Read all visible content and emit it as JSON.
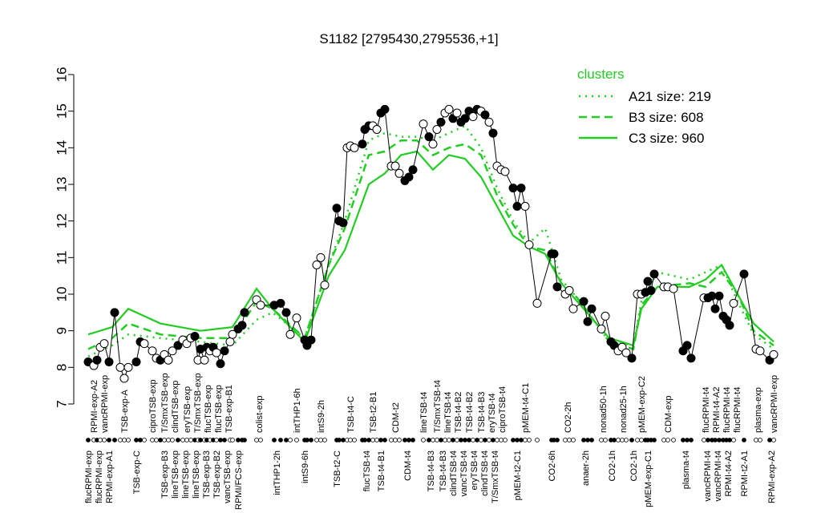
{
  "chart_data": {
    "type": "line",
    "title": "S1182 [2795430,2795536,+1]",
    "xlabel": "",
    "ylabel": "",
    "ylim": [
      7,
      16
    ],
    "yticks": [
      7,
      8,
      9,
      10,
      11,
      12,
      13,
      14,
      15,
      16
    ],
    "grid": false,
    "legend": {
      "title": "clusters",
      "placement": "top-right",
      "entries": [
        {
          "name": "A21 size: 219",
          "style": "dotted"
        },
        {
          "name": "B3 size: 608",
          "style": "dashed"
        },
        {
          "name": "C3 size: 960",
          "style": "solid"
        }
      ]
    },
    "colors": {
      "clusters": "#22cc22",
      "points": "#000000"
    },
    "points": {
      "values": [
        8.15,
        8.05,
        8.2,
        8.55,
        8.65,
        8.15,
        9.5,
        8.0,
        7.7,
        8.0,
        8.15,
        8.7,
        8.65,
        8.45,
        8.25,
        8.2,
        8.35,
        8.2,
        8.45,
        8.6,
        8.75,
        8.65,
        8.8,
        8.85,
        8.2,
        8.5,
        8.2,
        8.55,
        8.45,
        8.55,
        8.4,
        8.1,
        8.45,
        8.7,
        8.9,
        9.05,
        9.15,
        9.5,
        9.85,
        9.7,
        9.7,
        9.75,
        9.5,
        8.9,
        9.35,
        8.75,
        8.6,
        8.75,
        10.8,
        11.0,
        10.25,
        12.35,
        12.0,
        11.95,
        14.0,
        14.05,
        14.0,
        14.1,
        14.5,
        14.6,
        14.6,
        14.5,
        14.95,
        15.05,
        13.5,
        13.5,
        13.3,
        13.1,
        13.2,
        13.4,
        14.65,
        14.3,
        14.1,
        14.5,
        14.7,
        14.95,
        15.05,
        14.8,
        14.95,
        14.7,
        14.8,
        15.0,
        14.85,
        15.05,
        15.0,
        14.9,
        14.7,
        14.4,
        13.5,
        13.4,
        13.35,
        12.9,
        12.4,
        12.9,
        12.4,
        11.35,
        9.75,
        11.1,
        11.1,
        10.2,
        10.0,
        10.1,
        9.6,
        9.8,
        9.25,
        9.6,
        9.05,
        9.4,
        8.7,
        8.6,
        8.45,
        8.55,
        8.4,
        8.25,
        10.0,
        10.0,
        10.05,
        10.35,
        10.1,
        10.55,
        10.2,
        10.2,
        10.15,
        8.45,
        8.6,
        8.25,
        9.9,
        9.9,
        9.95,
        9.6,
        9.95,
        9.4,
        9.3,
        9.15,
        9.75,
        10.55,
        8.5,
        8.45,
        8.2,
        8.35
      ],
      "filled": [
        1,
        0,
        1,
        0,
        0,
        1,
        1,
        0,
        0,
        0,
        1,
        1,
        0,
        0,
        0,
        1,
        0,
        0,
        0,
        1,
        0,
        0,
        0,
        1,
        0,
        1,
        0,
        1,
        0,
        1,
        0,
        1,
        1,
        0,
        0,
        1,
        1,
        1,
        0,
        0,
        1,
        1,
        1,
        0,
        0,
        1,
        1,
        1,
        0,
        0,
        0,
        1,
        1,
        1,
        0,
        0,
        0,
        1,
        1,
        1,
        0,
        0,
        1,
        1,
        0,
        0,
        0,
        1,
        1,
        1,
        0,
        1,
        0,
        0,
        1,
        0,
        0,
        1,
        0,
        1,
        1,
        1,
        0,
        1,
        0,
        1,
        0,
        1,
        0,
        0,
        0,
        1,
        1,
        1,
        0,
        0,
        0,
        1,
        1,
        1,
        0,
        0,
        0,
        1,
        1,
        1,
        0,
        0,
        1,
        1,
        0,
        0,
        0,
        1,
        0,
        0,
        1,
        1,
        1,
        1,
        0,
        0,
        0,
        1,
        1,
        1,
        0,
        1,
        1,
        1,
        1,
        1,
        1,
        1,
        0,
        1,
        0,
        0,
        1,
        0
      ]
    },
    "series": [
      {
        "name": "A21 size: 219",
        "values": [
          8.3,
          8.6,
          8.9,
          8.8,
          8.7,
          8.6,
          9.3,
          9.5,
          8.8,
          10.8,
          12.0,
          14.2,
          14.4,
          14.3,
          14.3,
          14.2,
          14.4,
          14.6,
          14.0,
          12.9,
          12.0,
          11.4,
          11.8,
          10.4,
          9.9,
          8.7,
          8.6,
          9.8,
          10.6,
          10.4,
          10.6,
          10.8,
          9.8,
          8.9,
          8.5
        ]
      },
      {
        "name": "B3 size: 608",
        "values": [
          8.5,
          8.8,
          9.2,
          8.9,
          8.8,
          8.8,
          9.8,
          9.6,
          8.8,
          10.8,
          11.8,
          13.8,
          13.9,
          14.2,
          14.2,
          13.8,
          14.0,
          14.1,
          13.8,
          12.7,
          11.9,
          11.3,
          11.2,
          10.3,
          9.9,
          8.7,
          8.5,
          9.7,
          10.2,
          10.3,
          10.2,
          10.6,
          10.0,
          9.0,
          8.6
        ]
      },
      {
        "name": "C3 size: 960",
        "values": [
          8.9,
          9.1,
          9.6,
          9.2,
          9.0,
          9.1,
          10.15,
          9.6,
          8.7,
          10.5,
          11.2,
          13.0,
          13.3,
          13.8,
          13.9,
          13.4,
          13.8,
          13.7,
          13.2,
          12.4,
          11.6,
          11.3,
          11.1,
          10.3,
          9.8,
          8.8,
          8.6,
          9.6,
          10.2,
          10.2,
          10.4,
          10.8,
          10.0,
          9.2,
          8.7
        ]
      }
    ],
    "top_labels": [
      "RPMI-exp-A2",
      "vancRPMI-exp",
      "TSB-exp-A",
      "ciproTSB-exp",
      "T/SmxTSB-exp",
      "clindTSB-exp",
      "eryTSB-exp",
      "T/SmxTSB-exp",
      "flucTSB-exp",
      "flucTSB-exp",
      "TSB-exp-B1",
      "colist-exp",
      "intTHP1-6h",
      "intS9-2h",
      "TSB-t4-C",
      "TSB-t2-B1",
      "CDM-t2",
      "lineTSB-t4",
      "T/SmxTSB-t4",
      "lineTSB-t4",
      "TSB-t4-B2",
      "TSB-t4-B2",
      "TSB-t4-B3",
      "eryTSB-t4",
      "ciproTSB-t4",
      "pMEM-t4-C1",
      "CO2-2h",
      "nonad50-1h",
      "nonad25-1h",
      "pMEM-exp-C2",
      "CDM-exp",
      "flucRPMI-t4",
      "RPMI-t4-A2",
      "flucRPMI-t4",
      "flucRPMI-t4",
      "plasma-exp",
      "vancRPMI-exp"
    ],
    "bottom_labels": [
      "flucRPMI-exp",
      "flucRPMI-exp",
      "RPMI-exp-A1",
      "TSB-exp-C",
      "TSB-exp-B3",
      "lineTSB-exp",
      "lineTSB-exp",
      "lineTSB-exp",
      "TSB-exp-B3",
      "TSB-exp-B2",
      "vancTSB-exp",
      "RPMI/FCS-exp",
      "intTHP1-2h",
      "intS9-6h",
      "TSB-t2-C",
      "flucTSB-t4",
      "TSB-t4-B1",
      "CDM-t4",
      "TSB-t4-B3",
      "TSB-t4-B3",
      "clindTSB-t4",
      "vancTSB-t4",
      "eryTSB-t4",
      "clindTSB-t4",
      "T/SmxTSB-t4",
      "pMEM-t2-C1",
      "CO2-6h",
      "anaer-2h",
      "CO2-1h",
      "CO2-1h",
      "pMEM-exp-C1",
      "plasma-t4",
      "vancRPMI-t4",
      "vancRPMI-t4",
      "RPMI-t4-A2",
      "RPMI-t2-A1",
      "RPMI-exp-A2"
    ]
  }
}
